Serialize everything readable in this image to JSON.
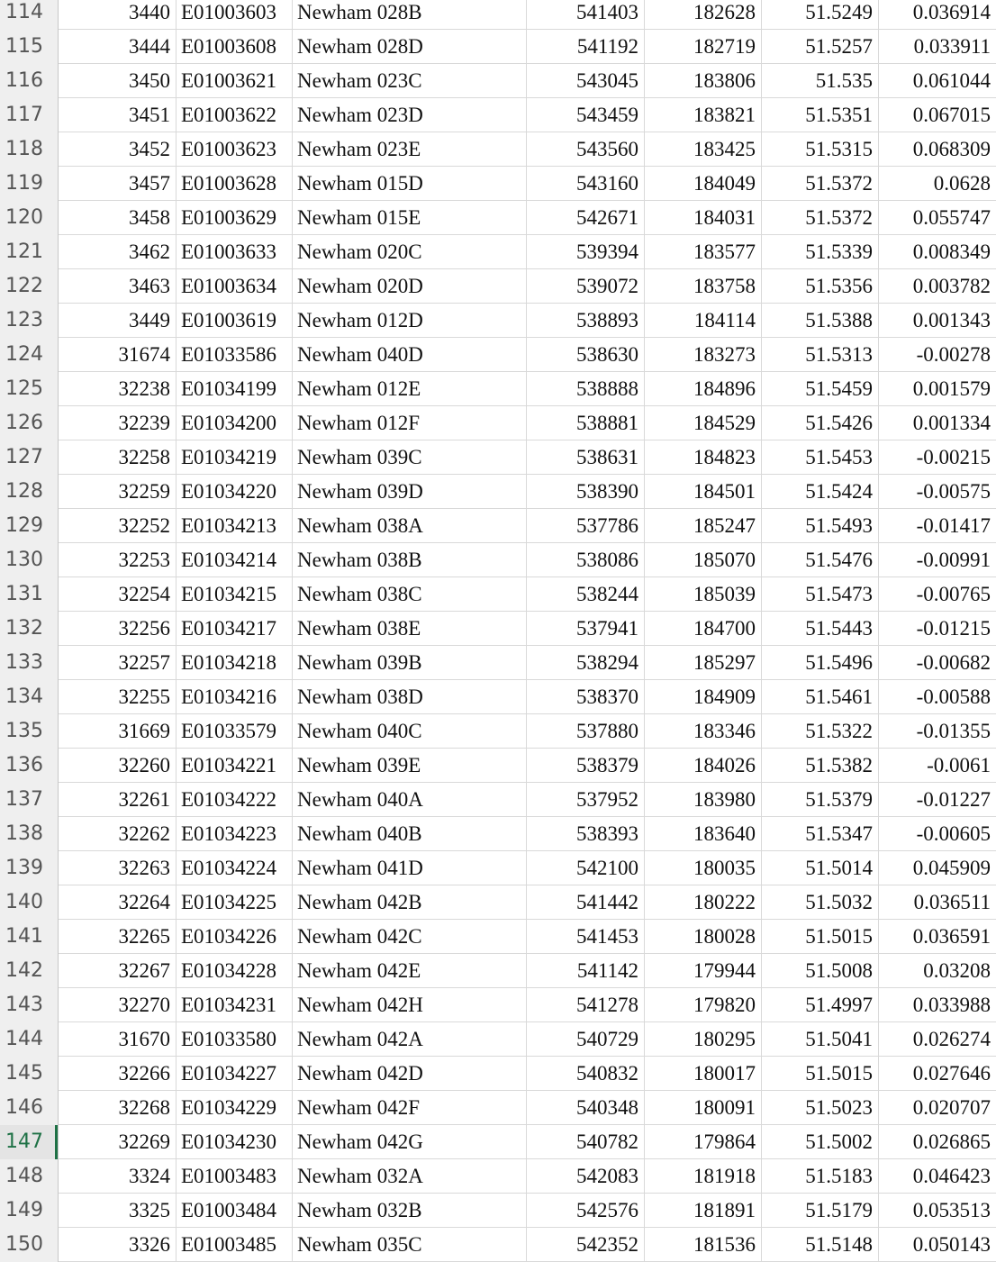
{
  "sheet": {
    "active_row": "147",
    "rows": [
      {
        "row": "114",
        "id": "3440",
        "code": "E01003603",
        "name": "Newham 028B",
        "easting": "541403",
        "northing": "182628",
        "lat": "51.5249",
        "lon": "0.036914"
      },
      {
        "row": "115",
        "id": "3444",
        "code": "E01003608",
        "name": "Newham 028D",
        "easting": "541192",
        "northing": "182719",
        "lat": "51.5257",
        "lon": "0.033911"
      },
      {
        "row": "116",
        "id": "3450",
        "code": "E01003621",
        "name": "Newham 023C",
        "easting": "543045",
        "northing": "183806",
        "lat": "51.535",
        "lon": "0.061044"
      },
      {
        "row": "117",
        "id": "3451",
        "code": "E01003622",
        "name": "Newham 023D",
        "easting": "543459",
        "northing": "183821",
        "lat": "51.5351",
        "lon": "0.067015"
      },
      {
        "row": "118",
        "id": "3452",
        "code": "E01003623",
        "name": "Newham 023E",
        "easting": "543560",
        "northing": "183425",
        "lat": "51.5315",
        "lon": "0.068309"
      },
      {
        "row": "119",
        "id": "3457",
        "code": "E01003628",
        "name": "Newham 015D",
        "easting": "543160",
        "northing": "184049",
        "lat": "51.5372",
        "lon": "0.0628"
      },
      {
        "row": "120",
        "id": "3458",
        "code": "E01003629",
        "name": "Newham 015E",
        "easting": "542671",
        "northing": "184031",
        "lat": "51.5372",
        "lon": "0.055747"
      },
      {
        "row": "121",
        "id": "3462",
        "code": "E01003633",
        "name": "Newham 020C",
        "easting": "539394",
        "northing": "183577",
        "lat": "51.5339",
        "lon": "0.008349"
      },
      {
        "row": "122",
        "id": "3463",
        "code": "E01003634",
        "name": "Newham 020D",
        "easting": "539072",
        "northing": "183758",
        "lat": "51.5356",
        "lon": "0.003782"
      },
      {
        "row": "123",
        "id": "3449",
        "code": "E01003619",
        "name": "Newham 012D",
        "easting": "538893",
        "northing": "184114",
        "lat": "51.5388",
        "lon": "0.001343"
      },
      {
        "row": "124",
        "id": "31674",
        "code": "E01033586",
        "name": "Newham 040D",
        "easting": "538630",
        "northing": "183273",
        "lat": "51.5313",
        "lon": "-0.00278"
      },
      {
        "row": "125",
        "id": "32238",
        "code": "E01034199",
        "name": "Newham 012E",
        "easting": "538888",
        "northing": "184896",
        "lat": "51.5459",
        "lon": "0.001579"
      },
      {
        "row": "126",
        "id": "32239",
        "code": "E01034200",
        "name": "Newham 012F",
        "easting": "538881",
        "northing": "184529",
        "lat": "51.5426",
        "lon": "0.001334"
      },
      {
        "row": "127",
        "id": "32258",
        "code": "E01034219",
        "name": "Newham 039C",
        "easting": "538631",
        "northing": "184823",
        "lat": "51.5453",
        "lon": "-0.00215"
      },
      {
        "row": "128",
        "id": "32259",
        "code": "E01034220",
        "name": "Newham 039D",
        "easting": "538390",
        "northing": "184501",
        "lat": "51.5424",
        "lon": "-0.00575"
      },
      {
        "row": "129",
        "id": "32252",
        "code": "E01034213",
        "name": "Newham 038A",
        "easting": "537786",
        "northing": "185247",
        "lat": "51.5493",
        "lon": "-0.01417"
      },
      {
        "row": "130",
        "id": "32253",
        "code": "E01034214",
        "name": "Newham 038B",
        "easting": "538086",
        "northing": "185070",
        "lat": "51.5476",
        "lon": "-0.00991"
      },
      {
        "row": "131",
        "id": "32254",
        "code": "E01034215",
        "name": "Newham 038C",
        "easting": "538244",
        "northing": "185039",
        "lat": "51.5473",
        "lon": "-0.00765"
      },
      {
        "row": "132",
        "id": "32256",
        "code": "E01034217",
        "name": "Newham 038E",
        "easting": "537941",
        "northing": "184700",
        "lat": "51.5443",
        "lon": "-0.01215"
      },
      {
        "row": "133",
        "id": "32257",
        "code": "E01034218",
        "name": "Newham 039B",
        "easting": "538294",
        "northing": "185297",
        "lat": "51.5496",
        "lon": "-0.00682"
      },
      {
        "row": "134",
        "id": "32255",
        "code": "E01034216",
        "name": "Newham 038D",
        "easting": "538370",
        "northing": "184909",
        "lat": "51.5461",
        "lon": "-0.00588"
      },
      {
        "row": "135",
        "id": "31669",
        "code": "E01033579",
        "name": "Newham 040C",
        "easting": "537880",
        "northing": "183346",
        "lat": "51.5322",
        "lon": "-0.01355"
      },
      {
        "row": "136",
        "id": "32260",
        "code": "E01034221",
        "name": "Newham 039E",
        "easting": "538379",
        "northing": "184026",
        "lat": "51.5382",
        "lon": "-0.0061"
      },
      {
        "row": "137",
        "id": "32261",
        "code": "E01034222",
        "name": "Newham 040A",
        "easting": "537952",
        "northing": "183980",
        "lat": "51.5379",
        "lon": "-0.01227"
      },
      {
        "row": "138",
        "id": "32262",
        "code": "E01034223",
        "name": "Newham 040B",
        "easting": "538393",
        "northing": "183640",
        "lat": "51.5347",
        "lon": "-0.00605"
      },
      {
        "row": "139",
        "id": "32263",
        "code": "E01034224",
        "name": "Newham 041D",
        "easting": "542100",
        "northing": "180035",
        "lat": "51.5014",
        "lon": "0.045909"
      },
      {
        "row": "140",
        "id": "32264",
        "code": "E01034225",
        "name": "Newham 042B",
        "easting": "541442",
        "northing": "180222",
        "lat": "51.5032",
        "lon": "0.036511"
      },
      {
        "row": "141",
        "id": "32265",
        "code": "E01034226",
        "name": "Newham 042C",
        "easting": "541453",
        "northing": "180028",
        "lat": "51.5015",
        "lon": "0.036591"
      },
      {
        "row": "142",
        "id": "32267",
        "code": "E01034228",
        "name": "Newham 042E",
        "easting": "541142",
        "northing": "179944",
        "lat": "51.5008",
        "lon": "0.03208"
      },
      {
        "row": "143",
        "id": "32270",
        "code": "E01034231",
        "name": "Newham 042H",
        "easting": "541278",
        "northing": "179820",
        "lat": "51.4997",
        "lon": "0.033988"
      },
      {
        "row": "144",
        "id": "31670",
        "code": "E01033580",
        "name": "Newham 042A",
        "easting": "540729",
        "northing": "180295",
        "lat": "51.5041",
        "lon": "0.026274"
      },
      {
        "row": "145",
        "id": "32266",
        "code": "E01034227",
        "name": "Newham 042D",
        "easting": "540832",
        "northing": "180017",
        "lat": "51.5015",
        "lon": "0.027646"
      },
      {
        "row": "146",
        "id": "32268",
        "code": "E01034229",
        "name": "Newham 042F",
        "easting": "540348",
        "northing": "180091",
        "lat": "51.5023",
        "lon": "0.020707"
      },
      {
        "row": "147",
        "id": "32269",
        "code": "E01034230",
        "name": "Newham 042G",
        "easting": "540782",
        "northing": "179864",
        "lat": "51.5002",
        "lon": "0.026865"
      },
      {
        "row": "148",
        "id": "3324",
        "code": "E01003483",
        "name": "Newham 032A",
        "easting": "542083",
        "northing": "181918",
        "lat": "51.5183",
        "lon": "0.046423"
      },
      {
        "row": "149",
        "id": "3325",
        "code": "E01003484",
        "name": "Newham 032B",
        "easting": "542576",
        "northing": "181891",
        "lat": "51.5179",
        "lon": "0.053513"
      },
      {
        "row": "150",
        "id": "3326",
        "code": "E01003485",
        "name": "Newham 035C",
        "easting": "542352",
        "northing": "181536",
        "lat": "51.5148",
        "lon": "0.050143"
      }
    ]
  }
}
